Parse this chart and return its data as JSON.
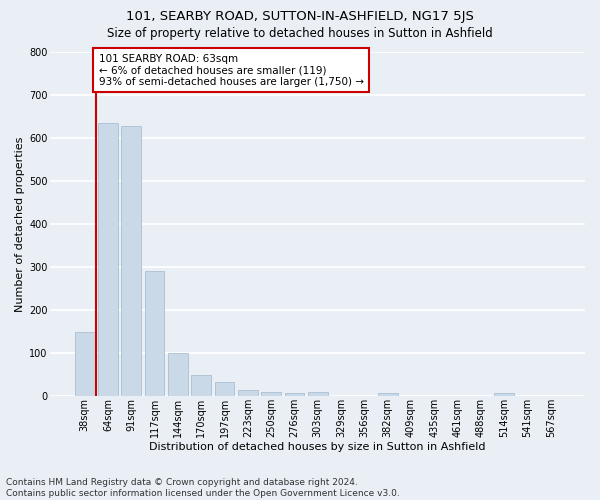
{
  "title": "101, SEARBY ROAD, SUTTON-IN-ASHFIELD, NG17 5JS",
  "subtitle": "Size of property relative to detached houses in Sutton in Ashfield",
  "xlabel": "Distribution of detached houses by size in Sutton in Ashfield",
  "ylabel": "Number of detached properties",
  "footnote1": "Contains HM Land Registry data © Crown copyright and database right 2024.",
  "footnote2": "Contains public sector information licensed under the Open Government Licence v3.0.",
  "bar_labels": [
    "38sqm",
    "64sqm",
    "91sqm",
    "117sqm",
    "144sqm",
    "170sqm",
    "197sqm",
    "223sqm",
    "250sqm",
    "276sqm",
    "303sqm",
    "329sqm",
    "356sqm",
    "382sqm",
    "409sqm",
    "435sqm",
    "461sqm",
    "488sqm",
    "514sqm",
    "541sqm",
    "567sqm"
  ],
  "bar_values": [
    148,
    635,
    628,
    290,
    101,
    48,
    33,
    14,
    9,
    8,
    9,
    0,
    0,
    7,
    0,
    0,
    0,
    0,
    8,
    0,
    0
  ],
  "bar_color": "#c9d9e8",
  "bar_edge_color": "#a0b8cc",
  "annotation_box_text": "101 SEARBY ROAD: 63sqm\n← 6% of detached houses are smaller (119)\n93% of semi-detached houses are larger (1,750) →",
  "annotation_box_color": "#cc0000",
  "annotation_box_fill": "#ffffff",
  "vline_x": 0.5,
  "ylim": [
    0,
    800
  ],
  "yticks": [
    0,
    100,
    200,
    300,
    400,
    500,
    600,
    700,
    800
  ],
  "bg_color": "#eaeff5",
  "plot_bg_color": "#eaeff5",
  "grid_color": "#ffffff",
  "title_fontsize": 9.5,
  "subtitle_fontsize": 8.5,
  "axis_label_fontsize": 8,
  "tick_fontsize": 7,
  "annotation_fontsize": 7.5,
  "footnote_fontsize": 6.5
}
